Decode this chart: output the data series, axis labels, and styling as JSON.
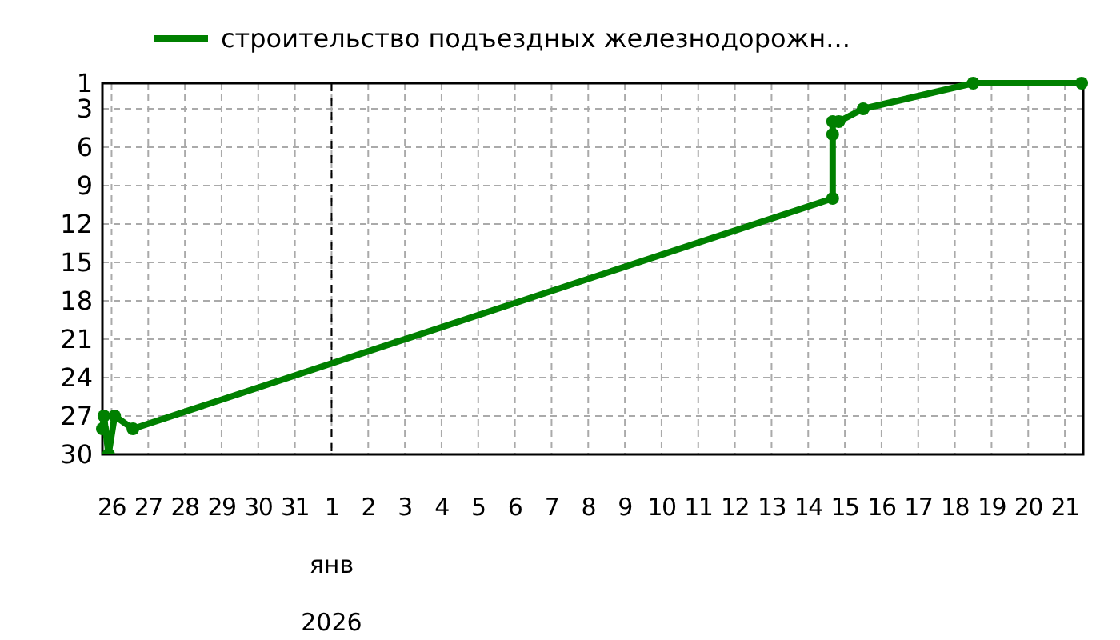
{
  "chart_data": {
    "type": "line",
    "xlabel": "янв 2026",
    "legend": "top",
    "grid": true,
    "marker": "circle",
    "line_style": "solid",
    "ylim": [
      30,
      1
    ],
    "yticks": [
      1,
      3,
      6,
      9,
      12,
      15,
      18,
      21,
      24,
      27,
      30
    ],
    "xlim": [
      "2025-12-25T18:00",
      "2026-01-21T12:00"
    ],
    "xticks": [
      {
        "value": "2025-12-26",
        "label": "26"
      },
      {
        "value": "2025-12-27",
        "label": "27"
      },
      {
        "value": "2025-12-28",
        "label": "28"
      },
      {
        "value": "2025-12-29",
        "label": "29"
      },
      {
        "value": "2025-12-30",
        "label": "30"
      },
      {
        "value": "2025-12-31",
        "label": "31"
      },
      {
        "value": "2026-01-01",
        "label": "1"
      },
      {
        "value": "2026-01-02",
        "label": "2"
      },
      {
        "value": "2026-01-03",
        "label": "3"
      },
      {
        "value": "2026-01-04",
        "label": "4"
      },
      {
        "value": "2026-01-05",
        "label": "5"
      },
      {
        "value": "2026-01-06",
        "label": "6"
      },
      {
        "value": "2026-01-07",
        "label": "7"
      },
      {
        "value": "2026-01-08",
        "label": "8"
      },
      {
        "value": "2026-01-09",
        "label": "9"
      },
      {
        "value": "2026-01-10",
        "label": "10"
      },
      {
        "value": "2026-01-11",
        "label": "11"
      },
      {
        "value": "2026-01-12",
        "label": "12"
      },
      {
        "value": "2026-01-13",
        "label": "13"
      },
      {
        "value": "2026-01-14",
        "label": "14"
      },
      {
        "value": "2026-01-15",
        "label": "15"
      },
      {
        "value": "2026-01-16",
        "label": "16"
      },
      {
        "value": "2026-01-17",
        "label": "17"
      },
      {
        "value": "2026-01-18",
        "label": "18"
      },
      {
        "value": "2026-01-19",
        "label": "19"
      },
      {
        "value": "2026-01-20",
        "label": "20"
      },
      {
        "value": "2026-01-21",
        "label": "21"
      }
    ],
    "ref_lines": [
      {
        "axis": "x",
        "value": "2026-01-01",
        "color": "#000000",
        "line_style": "dashed"
      }
    ],
    "series": [
      {
        "name": "строительство подъездных железнодорожн...",
        "color": "#008000",
        "x": [
          "2025-12-25T18:00",
          "2025-12-25T19:00",
          "2025-12-25T22:00",
          "2025-12-26T02:00",
          "2025-12-26T14:00",
          "2026-01-14T16:00",
          "2026-01-14T16:00",
          "2026-01-14T16:00",
          "2026-01-14T20:00",
          "2026-01-15T12:00",
          "2026-01-18T12:00",
          "2026-01-21T11:00"
        ],
        "values": [
          28,
          27,
          30,
          27,
          28,
          10,
          5,
          4,
          4,
          3,
          1,
          1
        ]
      }
    ]
  }
}
